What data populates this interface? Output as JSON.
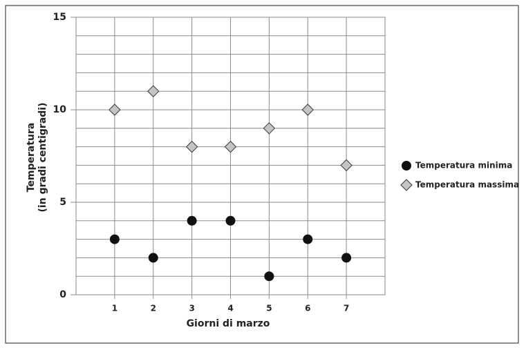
{
  "chart_data": {
    "type": "scatter",
    "xlabel": "Giorni di marzo",
    "ylabel": [
      "Temperatura",
      "(in gradi centigradi)"
    ],
    "x": [
      1,
      2,
      3,
      4,
      5,
      6,
      7
    ],
    "series": [
      {
        "name": "Temperatura minima",
        "color": "#111111",
        "marker": "circle",
        "values": [
          3,
          2,
          4,
          4,
          1,
          3,
          2
        ]
      },
      {
        "name": "Temperatura massima",
        "color": "#c4c4c4",
        "marker": "diamond",
        "values": [
          10,
          11,
          8,
          8,
          9,
          10,
          7
        ]
      }
    ],
    "xlim": [
      0,
      8
    ],
    "xticks": [
      1,
      2,
      3,
      4,
      5,
      6,
      7
    ],
    "ylim": [
      0,
      15
    ],
    "yticks": [
      0,
      5,
      10,
      15
    ],
    "y_minor_ticks": [
      1,
      2,
      3,
      4,
      6,
      7,
      8,
      9,
      11,
      12,
      13,
      14
    ],
    "grid": true,
    "legend": "right"
  }
}
